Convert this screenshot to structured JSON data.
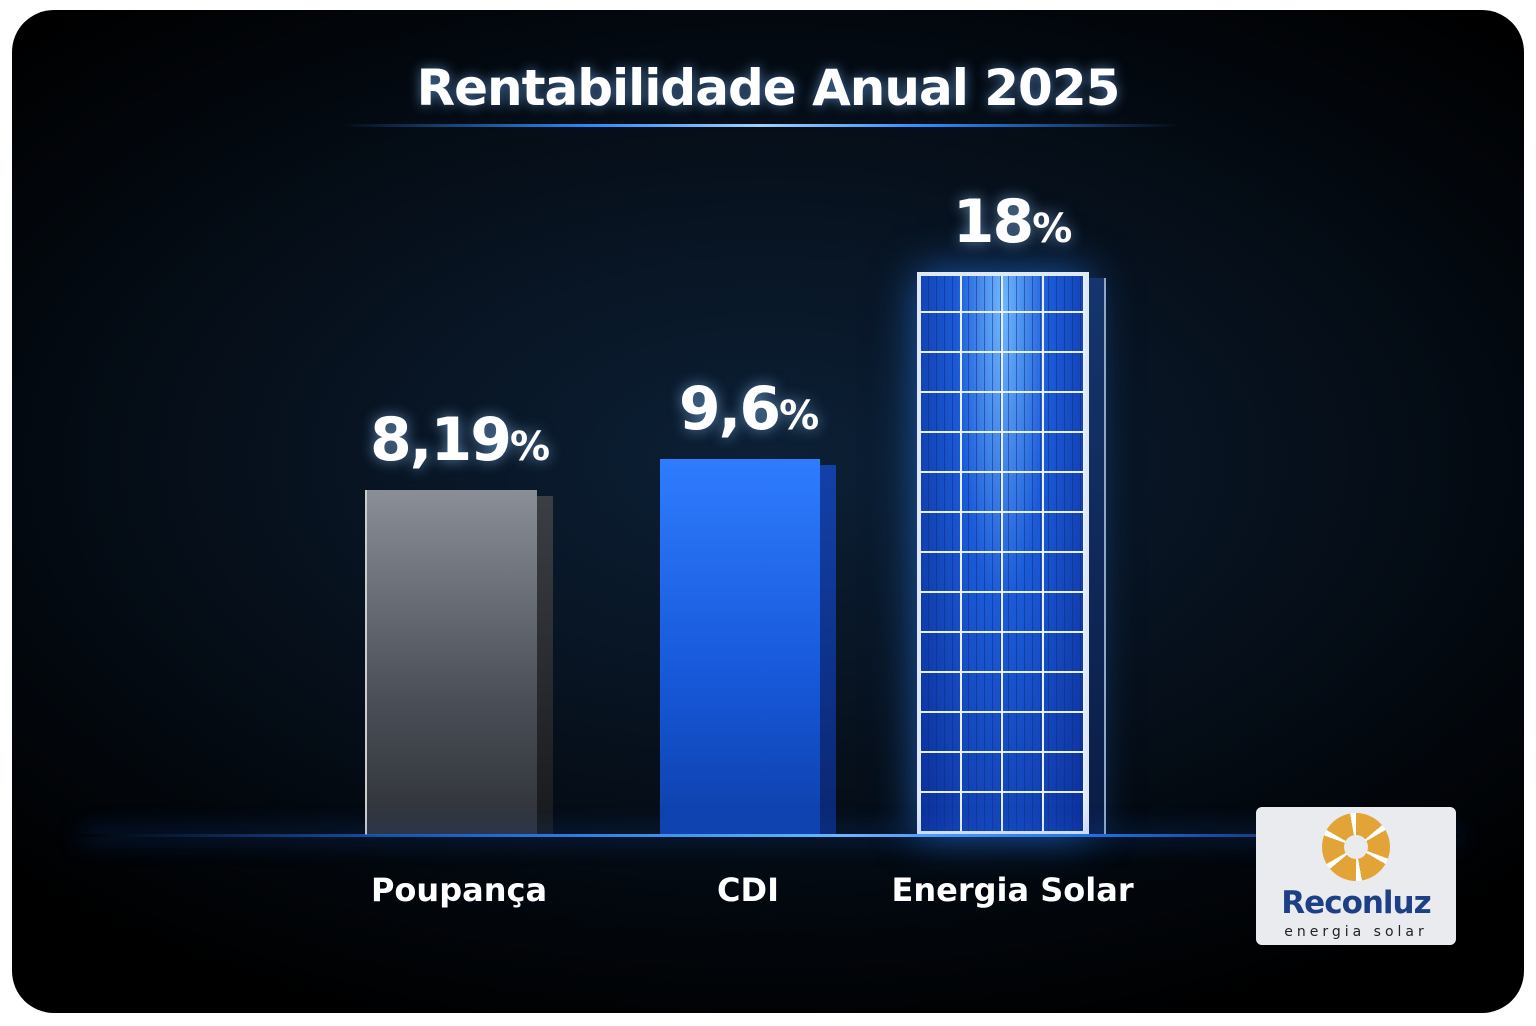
{
  "chart_data": {
    "type": "bar",
    "title": "Rentabilidade Anual 2025",
    "categories": [
      "Poupança",
      "CDI",
      "Energia Solar"
    ],
    "values": [
      8.19,
      9.6,
      18
    ],
    "value_labels": [
      "8,19",
      "9,6",
      "18"
    ],
    "unit": "%",
    "xlabel": "",
    "ylabel": "",
    "grid": false,
    "colors": [
      "#5a5f67",
      "#1e63e6",
      "#1b5bd8"
    ]
  },
  "logo": {
    "name": "Reconluz",
    "tagline": "energia solar"
  }
}
